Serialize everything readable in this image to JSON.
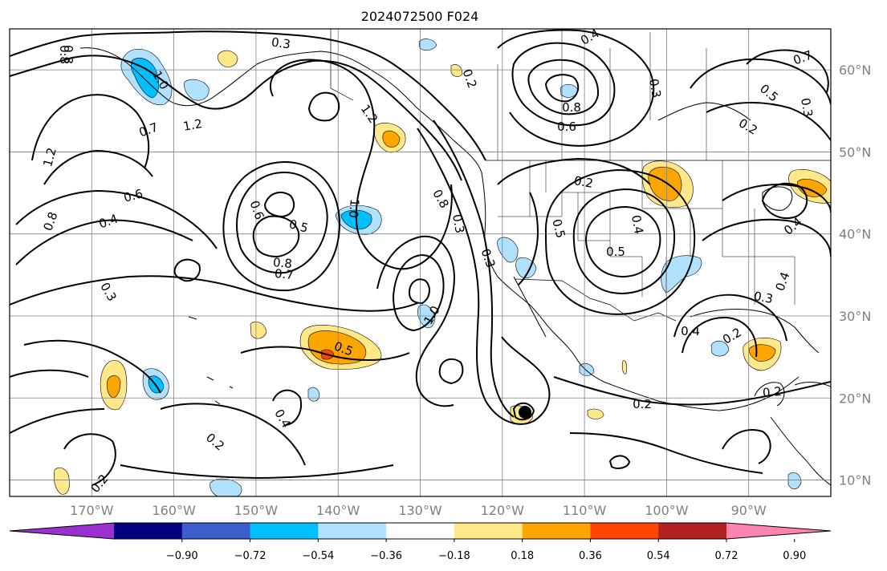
{
  "title": "2024072500 F024",
  "map": {
    "lon_range": [
      -180,
      -80
    ],
    "lat_range": [
      8,
      65
    ],
    "lat_labels": [
      "10°N",
      "20°N",
      "30°N",
      "40°N",
      "50°N",
      "60°N"
    ],
    "lon_labels": [
      "170°W",
      "160°W",
      "150°W",
      "140°W",
      "130°W",
      "120°W",
      "110°W",
      "100°W",
      "90°W"
    ],
    "contour_labels": [
      "0.3",
      "0.4",
      "0.2",
      "0.7",
      "0.5",
      "0.2",
      "0.8",
      "1.0",
      "1.2",
      "0.7",
      "1.2",
      "0.6",
      "0.4",
      "0.8",
      "1.2",
      "0.5",
      "0.3",
      "0.6",
      "0.5",
      "0.8",
      "0.7",
      "0.8",
      "0.3",
      "1.0",
      "0.5",
      "0.4",
      "0.2",
      "0.2",
      "0.2",
      "0.2",
      "0.4",
      "0.5",
      "0.3",
      "0.8",
      "0.6",
      "0.4",
      "0.2",
      "0.2",
      "0.3",
      "0.4",
      "0.4",
      "0.3",
      "0.3",
      "1.0",
      "0.8"
    ]
  },
  "colorbar": {
    "colors": [
      "#9b30d0",
      "#000080",
      "#3a5fcd",
      "#00bfff",
      "#b0e2ff",
      "#ffffff",
      "#ffe88a",
      "#ffa500",
      "#ff4500",
      "#b22222",
      "#ff85b0"
    ],
    "tick_labels": [
      "−0.90",
      "−0.72",
      "−0.54",
      "−0.36",
      "−0.18",
      "0.18",
      "0.36",
      "0.54",
      "0.72",
      "0.90"
    ]
  }
}
